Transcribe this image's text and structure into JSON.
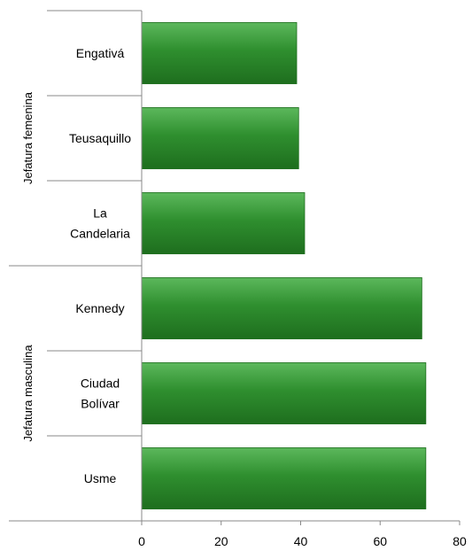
{
  "chart_data": {
    "type": "bar",
    "orientation": "horizontal",
    "title": "",
    "xlabel": "",
    "ylabel": "",
    "xlim": [
      0,
      80
    ],
    "x_ticks": [
      "0",
      "20",
      "40",
      "60",
      "80"
    ],
    "grid": false,
    "groups": [
      {
        "name": "Jefatura femenina",
        "categories": [
          {
            "label": [
              "Engativá"
            ],
            "value": 39
          },
          {
            "label": [
              "Teusaquillo"
            ],
            "value": 39.5
          },
          {
            "label": [
              "La",
              "Candelaria"
            ],
            "value": 41
          }
        ]
      },
      {
        "name": "Jefatura masculina",
        "categories": [
          {
            "label": [
              "Kennedy"
            ],
            "value": 70.5
          },
          {
            "label": [
              "Ciudad",
              "Bolívar"
            ],
            "value": 71.5
          },
          {
            "label": [
              "Usme"
            ],
            "value": 71.5
          }
        ]
      }
    ],
    "colors": {
      "bar": "#2f8f2f",
      "bar_light": "#5cb85c",
      "bar_dark": "#1e6e1e",
      "axis": "#888888"
    }
  }
}
